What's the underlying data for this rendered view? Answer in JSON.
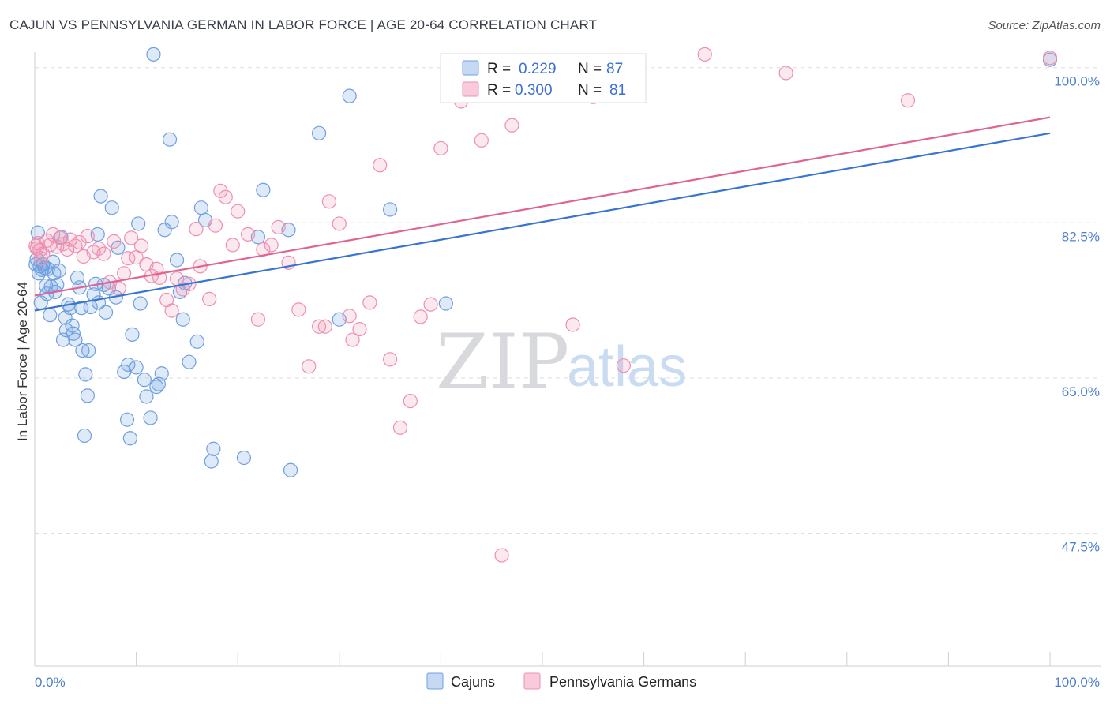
{
  "title": "CAJUN VS PENNSYLVANIA GERMAN IN LABOR FORCE | AGE 20-64 CORRELATION CHART",
  "source": "Source: ZipAtlas.com",
  "watermark": {
    "zip": "ZIP",
    "atlas": "atlas"
  },
  "colors": {
    "blue": "#6f9fe0",
    "blue_line": "#3a74d2",
    "pink": "#ee8fb1",
    "pink_line": "#e06491",
    "axis_text": "#4a7fd0"
  },
  "legend": {
    "r_label": "R =",
    "n_label": "N =",
    "cajuns": {
      "r": "0.229",
      "n": "87"
    },
    "pa_germans": {
      "r": "0.300",
      "n": "81"
    }
  },
  "chart_data": {
    "type": "scatter",
    "title": "CAJUN VS PENNSYLVANIA GERMAN IN LABOR FORCE | AGE 20-64 CORRELATION CHART",
    "xlabel": "",
    "ylabel": "In Labor Force | Age 20-64",
    "xlim": [
      0,
      100
    ],
    "ylim": [
      32.5,
      103
    ],
    "x_tick_labels": [
      "0.0%",
      "100.0%"
    ],
    "y_tick_labels": [
      "100.0%",
      "82.5%",
      "65.0%",
      "47.5%"
    ],
    "y_ticks": [
      100.0,
      82.5,
      65.0,
      47.5
    ],
    "grid": true,
    "legend_position": "bottom",
    "series": [
      {
        "name": "Cajuns",
        "color": "#6f9fe0",
        "trend": {
          "x": [
            0,
            100
          ],
          "y": [
            72.6,
            92.6
          ]
        },
        "points": [
          [
            0.1,
            77.8
          ],
          [
            0.2,
            78.4
          ],
          [
            0.3,
            81.4
          ],
          [
            0.4,
            76.8
          ],
          [
            0.5,
            77.6
          ],
          [
            0.6,
            73.5
          ],
          [
            0.7,
            77.2
          ],
          [
            0.8,
            77.8
          ],
          [
            1.0,
            77.4
          ],
          [
            1.1,
            75.4
          ],
          [
            1.2,
            74.5
          ],
          [
            1.3,
            77.3
          ],
          [
            1.5,
            72.1
          ],
          [
            1.6,
            75.3
          ],
          [
            1.8,
            78.1
          ],
          [
            1.9,
            76.8
          ],
          [
            2.0,
            74.7
          ],
          [
            2.2,
            75.5
          ],
          [
            2.4,
            77.1
          ],
          [
            2.6,
            80.9
          ],
          [
            2.8,
            69.3
          ],
          [
            3.0,
            71.8
          ],
          [
            3.1,
            70.4
          ],
          [
            3.3,
            73.3
          ],
          [
            3.5,
            72.9
          ],
          [
            3.7,
            70.9
          ],
          [
            3.8,
            70.0
          ],
          [
            4.0,
            69.3
          ],
          [
            4.2,
            76.3
          ],
          [
            4.4,
            75.2
          ],
          [
            4.6,
            72.9
          ],
          [
            4.7,
            68.1
          ],
          [
            4.9,
            58.5
          ],
          [
            5.0,
            65.4
          ],
          [
            5.2,
            63.0
          ],
          [
            5.3,
            68.1
          ],
          [
            5.5,
            73.0
          ],
          [
            5.8,
            74.4
          ],
          [
            6.0,
            75.6
          ],
          [
            6.2,
            81.2
          ],
          [
            6.3,
            73.5
          ],
          [
            6.5,
            85.5
          ],
          [
            6.8,
            75.5
          ],
          [
            7.0,
            72.4
          ],
          [
            7.3,
            75.1
          ],
          [
            7.6,
            84.2
          ],
          [
            8.0,
            74.1
          ],
          [
            8.2,
            79.7
          ],
          [
            8.8,
            65.7
          ],
          [
            9.1,
            60.3
          ],
          [
            9.2,
            66.5
          ],
          [
            9.4,
            58.2
          ],
          [
            9.6,
            69.9
          ],
          [
            10.0,
            66.2
          ],
          [
            10.2,
            82.4
          ],
          [
            10.4,
            73.4
          ],
          [
            10.8,
            64.8
          ],
          [
            11.0,
            62.9
          ],
          [
            11.4,
            60.5
          ],
          [
            11.7,
            101.5
          ],
          [
            12.0,
            64.0
          ],
          [
            12.2,
            64.3
          ],
          [
            12.5,
            65.5
          ],
          [
            12.8,
            81.7
          ],
          [
            13.3,
            91.9
          ],
          [
            13.5,
            82.6
          ],
          [
            14.0,
            78.3
          ],
          [
            14.3,
            74.7
          ],
          [
            14.6,
            71.6
          ],
          [
            14.8,
            75.7
          ],
          [
            15.2,
            66.8
          ],
          [
            16.0,
            69.1
          ],
          [
            16.4,
            84.2
          ],
          [
            16.8,
            82.8
          ],
          [
            17.4,
            55.6
          ],
          [
            17.6,
            57.0
          ],
          [
            20.6,
            56.0
          ],
          [
            22.0,
            80.9
          ],
          [
            22.5,
            86.2
          ],
          [
            25.0,
            81.7
          ],
          [
            25.2,
            54.6
          ],
          [
            28.0,
            92.6
          ],
          [
            30.0,
            71.6
          ],
          [
            31.0,
            96.8
          ],
          [
            35.0,
            84.0
          ],
          [
            40.5,
            73.4
          ],
          [
            100.0,
            100.9
          ]
        ]
      },
      {
        "name": "Pennsylvania Germans",
        "color": "#ee8fb1",
        "trend": {
          "x": [
            0,
            100
          ],
          "y": [
            74.3,
            94.4
          ]
        },
        "points": [
          [
            0.1,
            79.9
          ],
          [
            0.2,
            79.6
          ],
          [
            0.3,
            80.2
          ],
          [
            0.5,
            79.4
          ],
          [
            0.6,
            78.5
          ],
          [
            0.8,
            79.0
          ],
          [
            1.2,
            80.5
          ],
          [
            1.5,
            80.0
          ],
          [
            1.8,
            81.2
          ],
          [
            2.2,
            79.8
          ],
          [
            2.5,
            80.8
          ],
          [
            2.8,
            80.1
          ],
          [
            3.2,
            79.5
          ],
          [
            3.5,
            80.6
          ],
          [
            4.0,
            79.9
          ],
          [
            4.4,
            80.3
          ],
          [
            4.8,
            78.7
          ],
          [
            5.2,
            81.0
          ],
          [
            5.8,
            79.2
          ],
          [
            6.3,
            79.6
          ],
          [
            6.8,
            79.0
          ],
          [
            7.4,
            75.8
          ],
          [
            7.8,
            80.4
          ],
          [
            8.3,
            75.1
          ],
          [
            8.8,
            76.8
          ],
          [
            9.2,
            78.5
          ],
          [
            9.5,
            80.8
          ],
          [
            10.0,
            78.6
          ],
          [
            10.5,
            79.9
          ],
          [
            11.0,
            77.8
          ],
          [
            11.5,
            76.5
          ],
          [
            12.0,
            77.3
          ],
          [
            12.3,
            76.3
          ],
          [
            13.0,
            73.8
          ],
          [
            13.5,
            72.6
          ],
          [
            14.0,
            76.2
          ],
          [
            14.6,
            75.0
          ],
          [
            15.2,
            75.6
          ],
          [
            15.9,
            81.8
          ],
          [
            16.3,
            77.6
          ],
          [
            17.2,
            73.9
          ],
          [
            17.8,
            82.2
          ],
          [
            18.3,
            86.1
          ],
          [
            18.8,
            85.4
          ],
          [
            19.5,
            80.0
          ],
          [
            20.0,
            83.8
          ],
          [
            21.0,
            81.2
          ],
          [
            22.0,
            71.6
          ],
          [
            22.5,
            79.5
          ],
          [
            23.3,
            80.0
          ],
          [
            24.0,
            82.0
          ],
          [
            25.0,
            78.0
          ],
          [
            26.0,
            72.7
          ],
          [
            27.0,
            66.3
          ],
          [
            28.0,
            70.8
          ],
          [
            28.6,
            70.8
          ],
          [
            29.0,
            84.9
          ],
          [
            30.0,
            82.4
          ],
          [
            31.0,
            72.0
          ],
          [
            31.3,
            69.3
          ],
          [
            32.0,
            70.5
          ],
          [
            33.0,
            73.5
          ],
          [
            34.0,
            89.0
          ],
          [
            35.0,
            67.1
          ],
          [
            36.0,
            59.4
          ],
          [
            37.0,
            62.4
          ],
          [
            38.0,
            71.9
          ],
          [
            39.0,
            73.3
          ],
          [
            40.0,
            90.9
          ],
          [
            42.0,
            96.2
          ],
          [
            44.0,
            91.8
          ],
          [
            47.0,
            93.5
          ],
          [
            50.0,
            98.9
          ],
          [
            53.0,
            71.0
          ],
          [
            55.0,
            96.7
          ],
          [
            58.0,
            66.4
          ],
          [
            66.0,
            101.5
          ],
          [
            74.0,
            99.4
          ],
          [
            86.0,
            96.3
          ],
          [
            100.0,
            101.1
          ],
          [
            46.0,
            45.0
          ]
        ]
      }
    ]
  }
}
